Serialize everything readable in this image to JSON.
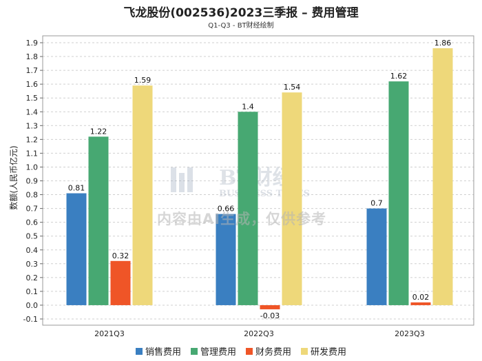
{
  "chart_data": {
    "type": "bar",
    "title": "飞龙股份(002536)2023三季报 – 费用管理",
    "subtitle": "Q1-Q3 - BT财经绘制",
    "ylabel": "数额(人民币亿元)",
    "xlabel": "",
    "categories": [
      "2021Q3",
      "2022Q3",
      "2023Q3"
    ],
    "ylim": [
      -0.1,
      1.9
    ],
    "yticks": [
      "-0.1",
      "0.0",
      "0.1",
      "0.2",
      "0.3",
      "0.4",
      "0.5",
      "0.6",
      "0.7",
      "0.8",
      "0.9",
      "1.0",
      "1.1",
      "1.2",
      "1.3",
      "1.4",
      "1.5",
      "1.6",
      "1.7",
      "1.8",
      "1.9"
    ],
    "grid": true,
    "legend_position": "bottom",
    "series": [
      {
        "name": "销售费用",
        "color": "#3a7fc1",
        "values": [
          0.81,
          0.66,
          0.7
        ],
        "labels": [
          "0.81",
          "0.66",
          "0.7"
        ]
      },
      {
        "name": "管理费用",
        "color": "#47a872",
        "values": [
          1.22,
          1.4,
          1.62
        ],
        "labels": [
          "1.22",
          "1.4",
          "1.62"
        ]
      },
      {
        "name": "财务费用",
        "color": "#ef5527",
        "values": [
          0.32,
          -0.03,
          0.02
        ],
        "labels": [
          "0.32",
          "-0.03",
          "0.02"
        ]
      },
      {
        "name": "研发费用",
        "color": "#eed87a",
        "values": [
          1.59,
          1.54,
          1.86
        ],
        "labels": [
          "1.59",
          "1.54",
          "1.86"
        ]
      }
    ]
  },
  "watermark": {
    "brand": "BT财经",
    "brand_en": "BUSINESS TIMES",
    "notice": "内容由AI生成，仅供参考"
  }
}
